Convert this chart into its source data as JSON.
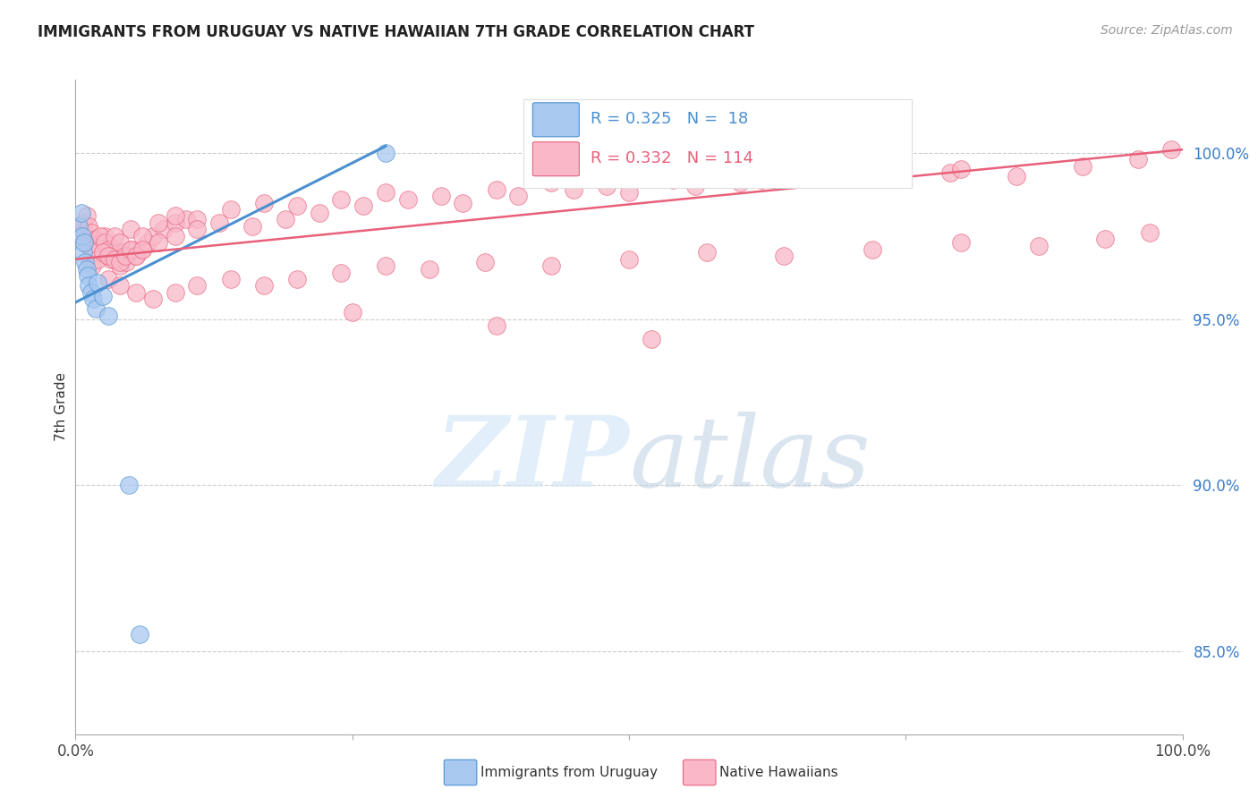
{
  "title": "IMMIGRANTS FROM URUGUAY VS NATIVE HAWAIIAN 7TH GRADE CORRELATION CHART",
  "source": "Source: ZipAtlas.com",
  "ylabel": "7th Grade",
  "ytick_values": [
    0.85,
    0.9,
    0.95,
    1.0
  ],
  "xmin": 0.0,
  "xmax": 1.0,
  "ymin": 0.825,
  "ymax": 1.022,
  "legend_blue_r": "R = 0.325",
  "legend_blue_n": "N =  18",
  "legend_pink_r": "R = 0.332",
  "legend_pink_n": "N = 114",
  "legend_label_blue": "Immigrants from Uruguay",
  "legend_label_pink": "Native Hawaiians",
  "blue_color": "#A8C8F0",
  "pink_color": "#F8B8C8",
  "blue_line_color": "#4A90D0",
  "pink_line_color": "#E8607A",
  "blue_line_x0": 0.0,
  "blue_line_y0": 0.955,
  "blue_line_x1": 0.28,
  "blue_line_y1": 1.002,
  "pink_line_x0": 0.0,
  "pink_line_y0": 0.968,
  "pink_line_x1": 1.0,
  "pink_line_y1": 1.001,
  "blue_scatter_x": [
    0.003,
    0.005,
    0.006,
    0.007,
    0.008,
    0.009,
    0.01,
    0.011,
    0.012,
    0.014,
    0.016,
    0.018,
    0.02,
    0.025,
    0.03,
    0.28,
    0.048,
    0.058
  ],
  "blue_scatter_y": [
    0.978,
    0.982,
    0.975,
    0.97,
    0.973,
    0.967,
    0.965,
    0.963,
    0.96,
    0.958,
    0.956,
    0.953,
    0.961,
    0.957,
    0.951,
    1.0,
    0.9,
    0.855
  ],
  "pink_scatter_x": [
    0.003,
    0.005,
    0.007,
    0.008,
    0.01,
    0.012,
    0.014,
    0.016,
    0.018,
    0.02,
    0.022,
    0.024,
    0.026,
    0.028,
    0.03,
    0.032,
    0.035,
    0.038,
    0.04,
    0.043,
    0.046,
    0.05,
    0.055,
    0.06,
    0.065,
    0.07,
    0.08,
    0.09,
    0.1,
    0.012,
    0.015,
    0.018,
    0.022,
    0.026,
    0.03,
    0.035,
    0.04,
    0.05,
    0.06,
    0.075,
    0.09,
    0.11,
    0.14,
    0.17,
    0.2,
    0.24,
    0.28,
    0.33,
    0.38,
    0.43,
    0.48,
    0.54,
    0.6,
    0.66,
    0.72,
    0.79,
    0.85,
    0.91,
    0.96,
    0.99,
    0.015,
    0.02,
    0.025,
    0.03,
    0.035,
    0.04,
    0.045,
    0.05,
    0.055,
    0.06,
    0.075,
    0.09,
    0.11,
    0.13,
    0.16,
    0.19,
    0.22,
    0.26,
    0.3,
    0.35,
    0.4,
    0.45,
    0.5,
    0.56,
    0.62,
    0.68,
    0.74,
    0.8,
    0.03,
    0.04,
    0.055,
    0.07,
    0.09,
    0.11,
    0.14,
    0.17,
    0.2,
    0.24,
    0.28,
    0.32,
    0.37,
    0.43,
    0.5,
    0.57,
    0.64,
    0.72,
    0.8,
    0.87,
    0.93,
    0.97,
    0.25,
    0.38,
    0.52
  ],
  "pink_scatter_y": [
    0.977,
    0.975,
    0.979,
    0.976,
    0.981,
    0.978,
    0.976,
    0.972,
    0.974,
    0.97,
    0.973,
    0.971,
    0.975,
    0.969,
    0.972,
    0.968,
    0.971,
    0.969,
    0.966,
    0.97,
    0.967,
    0.971,
    0.969,
    0.971,
    0.973,
    0.975,
    0.977,
    0.979,
    0.98,
    0.972,
    0.971,
    0.97,
    0.975,
    0.973,
    0.971,
    0.975,
    0.973,
    0.977,
    0.975,
    0.979,
    0.981,
    0.98,
    0.983,
    0.985,
    0.984,
    0.986,
    0.988,
    0.987,
    0.989,
    0.991,
    0.99,
    0.992,
    0.991,
    0.993,
    0.995,
    0.994,
    0.993,
    0.996,
    0.998,
    1.001,
    0.966,
    0.968,
    0.97,
    0.969,
    0.968,
    0.967,
    0.969,
    0.971,
    0.969,
    0.971,
    0.973,
    0.975,
    0.977,
    0.979,
    0.978,
    0.98,
    0.982,
    0.984,
    0.986,
    0.985,
    0.987,
    0.989,
    0.988,
    0.99,
    0.992,
    0.994,
    0.993,
    0.995,
    0.962,
    0.96,
    0.958,
    0.956,
    0.958,
    0.96,
    0.962,
    0.96,
    0.962,
    0.964,
    0.966,
    0.965,
    0.967,
    0.966,
    0.968,
    0.97,
    0.969,
    0.971,
    0.973,
    0.972,
    0.974,
    0.976,
    0.952,
    0.948,
    0.944
  ]
}
